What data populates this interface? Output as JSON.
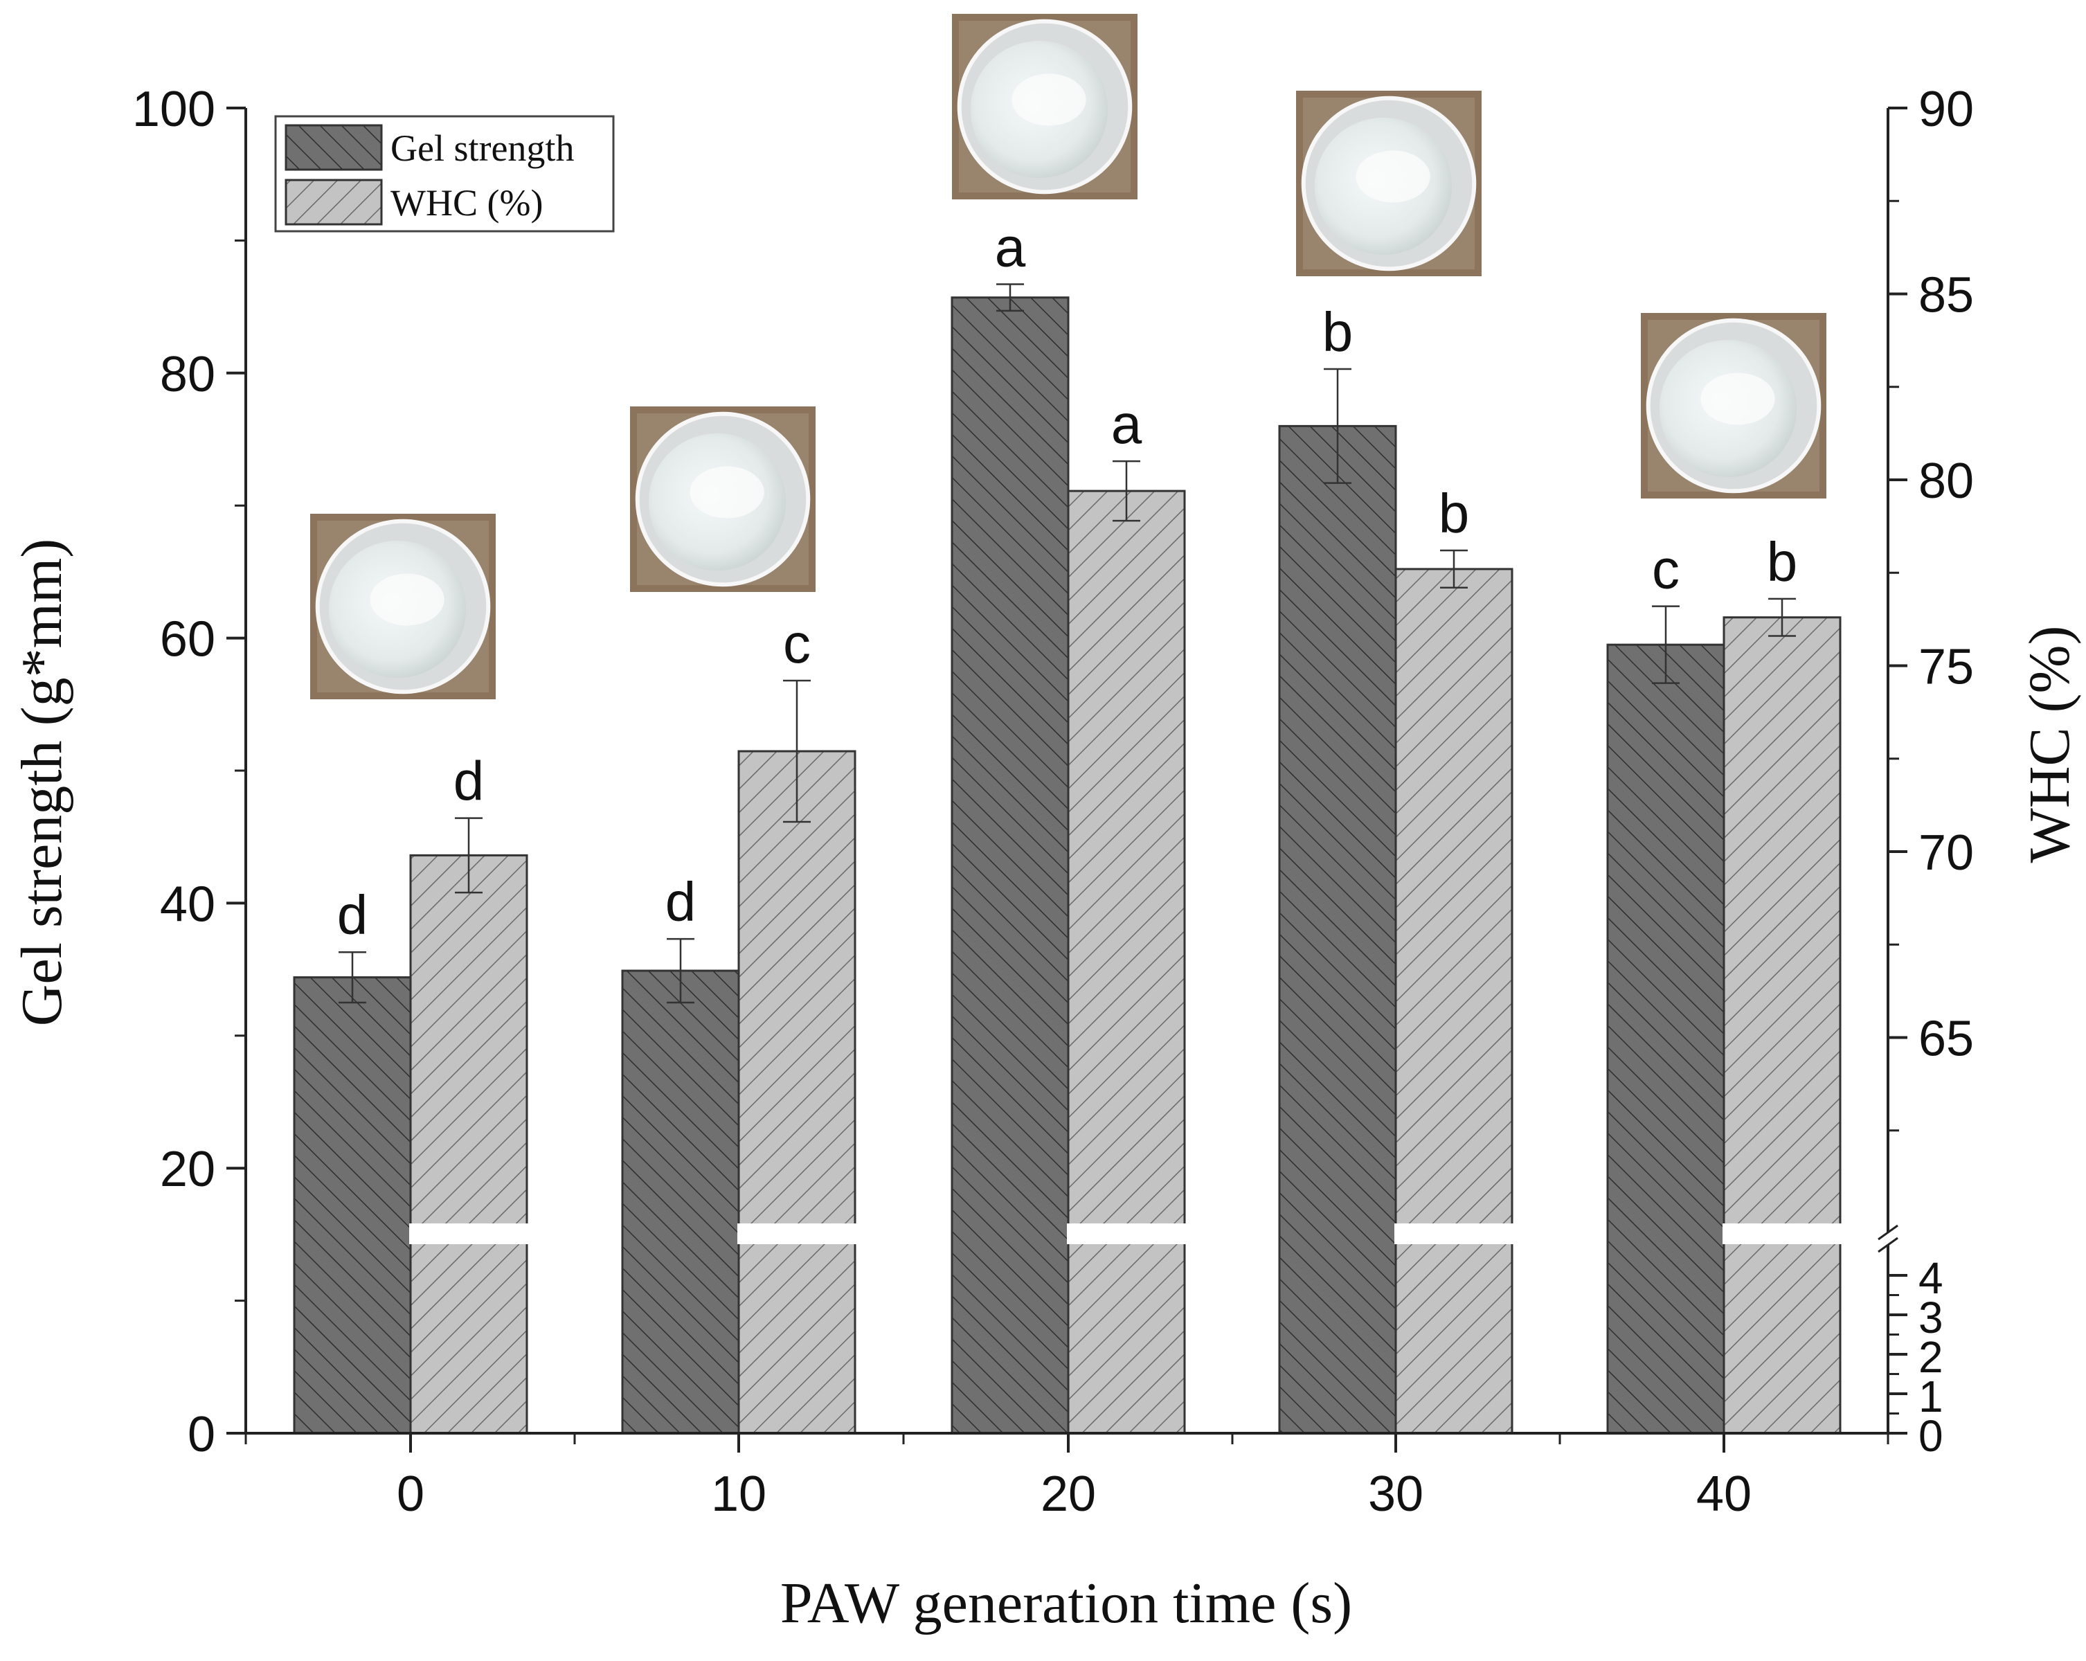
{
  "chart_data": {
    "type": "bar",
    "categories": [
      "0",
      "10",
      "20",
      "30",
      "40"
    ],
    "xlabel": "PAW generation time (s)",
    "ylabel_left": "Gel strength (g*mm)",
    "ylabel_right": "WHC (%)",
    "y_left_range": [
      0,
      100
    ],
    "y_left_ticks": [
      "0",
      "20",
      "40",
      "60",
      "80",
      "100"
    ],
    "y_right_upper_range": [
      60,
      90
    ],
    "y_right_upper_ticks": [
      "65",
      "70",
      "75",
      "80",
      "85",
      "90"
    ],
    "y_right_lower_range": [
      0,
      4
    ],
    "y_right_lower_ticks": [
      "0",
      "1",
      "2",
      "3",
      "4"
    ],
    "legend": {
      "position": "top-left",
      "items": [
        "Gel strength",
        "WHC (%)"
      ]
    },
    "series": [
      {
        "name": "Gel strength",
        "axis": "left",
        "color": "#707070",
        "values": [
          34.4,
          34.9,
          85.7,
          76.0,
          59.5
        ],
        "errors": [
          1.9,
          2.4,
          1.0,
          4.3,
          2.9
        ],
        "labels": [
          "d",
          "d",
          "a",
          "b",
          "c"
        ]
      },
      {
        "name": "WHC (%)",
        "axis": "right",
        "color": "#c3c3c3",
        "values": [
          69.9,
          72.7,
          79.7,
          77.6,
          76.3
        ],
        "errors": [
          1.0,
          1.9,
          0.8,
          0.5,
          0.5
        ],
        "labels": [
          "d",
          "c",
          "a",
          "b",
          "b"
        ]
      }
    ],
    "photos": [
      "0",
      "10",
      "20",
      "30",
      "40"
    ]
  }
}
